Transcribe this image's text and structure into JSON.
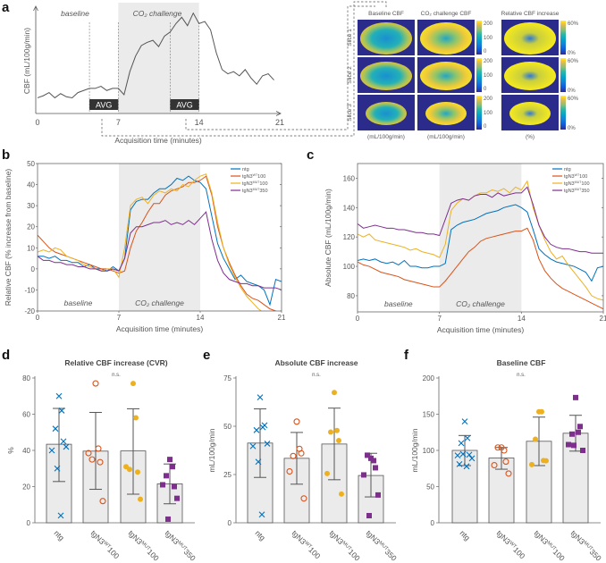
{
  "panel_labels": {
    "a": "a",
    "b": "b",
    "c": "c",
    "d": "d",
    "e": "e",
    "f": "f"
  },
  "colors": {
    "ntg": "#0072BD",
    "tgN3WT100": "#D95319",
    "tgN3MUT100": "#EDB120",
    "tgN3MUT350": "#7E2F8E",
    "shade": "#ebebeb",
    "bar": "#ebebeb",
    "avg_box": "#333333",
    "map_background": "#2b2b8c"
  },
  "brain_maps": {
    "col_titles": [
      "Baseline CBF",
      "CO₂ challenge CBF",
      "Relative CBF increase"
    ],
    "row_labels": [
      "Slice 1",
      "Slice 2",
      "Slice 3"
    ],
    "cbf_colorbar_ticks": [
      "200",
      "100",
      "0"
    ],
    "pct_colorbar_ticks": [
      "60%",
      "0%"
    ],
    "units": [
      "(mL/100g/min)",
      "(mL/100g/min)",
      "(%)"
    ],
    "colormap": "parula"
  },
  "chart_data": [
    {
      "panel": "a",
      "type": "line",
      "ylabel": "CBF (mL/100g/min)",
      "xlabel": "Acquisition time (minutes)",
      "xticks": [
        "0",
        "7",
        "14",
        "21"
      ],
      "xlim": [
        0,
        21
      ],
      "y_ticks_shown": false,
      "phase_labels": [
        "baseline",
        "CO₂ challenge"
      ],
      "shaded_interval": [
        7,
        14
      ],
      "avg_windows": [
        [
          4.5,
          7
        ],
        [
          11.5,
          14
        ]
      ],
      "avg_labels": [
        "AVG",
        "AVG"
      ],
      "x": [
        0,
        0.5,
        1,
        1.5,
        2,
        2.5,
        3,
        3.5,
        4,
        4.5,
        5,
        5.5,
        6,
        6.5,
        7,
        7.5,
        8,
        8.5,
        9,
        9.5,
        10,
        10.5,
        11,
        11.5,
        12,
        12.5,
        13,
        13.5,
        14,
        14.5,
        15,
        15.5,
        16,
        16.5,
        17,
        17.5,
        18,
        18.5,
        19,
        19.5,
        20,
        20.5
      ],
      "values": [
        15,
        17,
        20,
        15,
        19,
        16,
        15,
        20,
        22,
        24,
        24,
        26,
        22,
        24,
        24,
        18,
        40,
        55,
        65,
        68,
        70,
        64,
        74,
        78,
        86,
        92,
        84,
        96,
        86,
        88,
        80,
        58,
        42,
        38,
        40,
        36,
        42,
        34,
        28,
        36,
        38,
        32
      ]
    },
    {
      "panel": "b",
      "type": "line",
      "ylabel": "Relative CBF (% increase from baseline)",
      "xlabel": "Acquisition time (minutes)",
      "xlim": [
        0,
        21
      ],
      "ylim": [
        -20,
        50
      ],
      "xticks": [
        "0",
        "7",
        "14",
        "21"
      ],
      "yticks": [
        "50",
        "40",
        "30",
        "20",
        "10",
        "0",
        "-10",
        "-20"
      ],
      "phase_labels": [
        "baseline",
        "CO₂ challenge"
      ],
      "shaded_interval": [
        7,
        14
      ],
      "legend": "top-right",
      "x": [
        0,
        0.5,
        1,
        1.5,
        2,
        2.5,
        3,
        3.5,
        4,
        4.5,
        5,
        5.5,
        6,
        6.5,
        7,
        7.5,
        8,
        8.5,
        9,
        9.5,
        10,
        10.5,
        11,
        11.5,
        12,
        12.5,
        13,
        13.5,
        14,
        14.5,
        15,
        15.5,
        16,
        16.5,
        17,
        17.5,
        18,
        18.5,
        19,
        19.5,
        20,
        20.5,
        21
      ],
      "series": [
        {
          "name": {
            "base": "ntg",
            "sup": "",
            "suffix": ""
          },
          "color": "#0072BD",
          "values": [
            6,
            6,
            5,
            6,
            4,
            4,
            3,
            3,
            1,
            2,
            0,
            0,
            -1,
            1,
            -1,
            5,
            28,
            32,
            33,
            33,
            36,
            38,
            38,
            40,
            43,
            42,
            44,
            42,
            41,
            38,
            25,
            12,
            5,
            0,
            -5,
            -3,
            -6,
            -7,
            -8,
            -10,
            -17,
            -5,
            -6
          ]
        },
        {
          "name": {
            "base": "tgN3",
            "sup": "WT",
            "suffix": "100"
          },
          "color": "#D95319",
          "values": [
            16,
            13,
            10,
            8,
            7,
            6,
            5,
            4,
            3,
            2,
            1,
            0,
            0,
            -1,
            -2,
            -1,
            10,
            18,
            22,
            27,
            31,
            31,
            35,
            37,
            38,
            39,
            41,
            41,
            42,
            44,
            35,
            20,
            10,
            3,
            -3,
            -8,
            -12,
            -14,
            -15,
            -17,
            -19,
            -20,
            -22
          ]
        },
        {
          "name": {
            "base": "tgN3",
            "sup": "MUT",
            "suffix": "100"
          },
          "color": "#EDB120",
          "values": [
            8,
            9,
            8,
            10,
            9,
            6,
            5,
            4,
            2,
            1,
            0,
            -1,
            0,
            0,
            -4,
            10,
            30,
            33,
            34,
            31,
            35,
            37,
            36,
            38,
            37,
            40,
            39,
            42,
            44,
            45,
            36,
            22,
            10,
            2,
            -4,
            -9,
            -13,
            -16,
            -19,
            -21,
            -23,
            -24,
            -25
          ]
        },
        {
          "name": {
            "base": "tgN3",
            "sup": "MUT",
            "suffix": "350"
          },
          "color": "#7E2F8E",
          "values": [
            6,
            4,
            4,
            3,
            3,
            2,
            2,
            1,
            1,
            0,
            0,
            -1,
            -1,
            0,
            -1,
            5,
            17,
            20,
            20,
            21,
            22,
            22,
            23,
            21,
            22,
            21,
            23,
            21,
            24,
            27,
            14,
            4,
            -2,
            -5,
            -6,
            -7,
            -7,
            -8,
            -8,
            -9,
            -9,
            -9,
            -10
          ]
        }
      ]
    },
    {
      "panel": "c",
      "type": "line",
      "ylabel": "Absolute CBF (mL/100g/min)",
      "xlabel": "Acquisition time (minutes)",
      "xlim": [
        0,
        21
      ],
      "ylim": [
        69,
        170
      ],
      "xticks": [
        "0",
        "7",
        "14",
        "21"
      ],
      "yticks": [
        "160",
        "140",
        "120",
        "100",
        "80"
      ],
      "phase_labels": [
        "baseline",
        "CO₂ challenge"
      ],
      "shaded_interval": [
        7,
        14
      ],
      "legend": "top-right",
      "x": [
        0,
        0.5,
        1,
        1.5,
        2,
        2.5,
        3,
        3.5,
        4,
        4.5,
        5,
        5.5,
        6,
        6.5,
        7,
        7.5,
        8,
        8.5,
        9,
        9.5,
        10,
        10.5,
        11,
        11.5,
        12,
        12.5,
        13,
        13.5,
        14,
        14.5,
        15,
        15.5,
        16,
        16.5,
        17,
        17.5,
        18,
        18.5,
        19,
        19.5,
        20,
        20.5,
        21
      ],
      "series": [
        {
          "name": {
            "base": "ntg",
            "sup": "",
            "suffix": ""
          },
          "color": "#0072BD",
          "values": [
            104,
            105,
            104,
            105,
            103,
            102,
            103,
            101,
            104,
            100,
            100,
            99,
            99,
            100,
            100,
            102,
            125,
            128,
            130,
            131,
            132,
            134,
            136,
            137,
            138,
            140,
            141,
            142,
            140,
            137,
            125,
            112,
            108,
            105,
            103,
            102,
            101,
            100,
            98,
            96,
            90,
            99,
            100
          ]
        },
        {
          "name": {
            "base": "tgN3",
            "sup": "WT",
            "suffix": "100"
          },
          "color": "#D95319",
          "values": [
            103,
            101,
            100,
            98,
            96,
            95,
            94,
            93,
            91,
            90,
            89,
            88,
            87,
            86,
            86,
            90,
            95,
            100,
            105,
            110,
            113,
            117,
            119,
            120,
            121,
            122,
            123,
            124,
            124,
            126,
            118,
            105,
            97,
            92,
            88,
            85,
            83,
            81,
            79,
            77,
            75,
            73,
            71
          ]
        },
        {
          "name": {
            "base": "tgN3",
            "sup": "MUT",
            "suffix": "100"
          },
          "color": "#EDB120",
          "values": [
            122,
            120,
            122,
            118,
            117,
            116,
            115,
            114,
            113,
            111,
            112,
            110,
            109,
            108,
            106,
            115,
            138,
            143,
            146,
            145,
            148,
            150,
            150,
            152,
            151,
            153,
            150,
            154,
            152,
            158,
            140,
            128,
            118,
            110,
            105,
            107,
            101,
            96,
            91,
            86,
            80,
            78,
            77
          ]
        },
        {
          "name": {
            "base": "tgN3",
            "sup": "MUT",
            "suffix": "350"
          },
          "color": "#7E2F8E",
          "values": [
            129,
            126,
            127,
            128,
            127,
            126,
            126,
            125,
            125,
            124,
            123,
            123,
            122,
            122,
            121,
            132,
            143,
            145,
            146,
            145,
            148,
            149,
            149,
            147,
            150,
            148,
            149,
            150,
            150,
            154,
            142,
            128,
            120,
            115,
            113,
            112,
            112,
            111,
            110,
            110,
            109,
            109,
            109
          ]
        }
      ]
    },
    {
      "panel": "d",
      "type": "bar",
      "title": "Relative CBF increase (CVR)",
      "ylabel": "%",
      "annotation": "n.s.",
      "ylim": [
        0,
        80
      ],
      "yticks": [
        "0",
        "20",
        "40",
        "60",
        "80"
      ],
      "categories": [
        {
          "base": "ntg",
          "sup": "",
          "suffix": ""
        },
        {
          "base": "tgN3",
          "sup": "WT",
          "suffix": "100"
        },
        {
          "base": "tgN3",
          "sup": "MUT",
          "suffix": "100"
        },
        {
          "base": "tgN3",
          "sup": "MUT",
          "suffix": "350"
        }
      ],
      "means": [
        43.4,
        39.6,
        39.7,
        21.5
      ],
      "error_low": [
        22.8,
        18.5,
        15.8,
        10.5
      ],
      "error_high": [
        63.2,
        61,
        63,
        32.5
      ],
      "points": [
        [
          70,
          62,
          52,
          45,
          40,
          42,
          30,
          4
        ],
        [
          77,
          41,
          35,
          33.5,
          38.5,
          12
        ],
        [
          77,
          58,
          29.5,
          28,
          31,
          13
        ],
        [
          35,
          31,
          26,
          20,
          21,
          13.5,
          2
        ]
      ],
      "markers": [
        "x",
        "open-circle",
        "filled-circle",
        "filled-square"
      ]
    },
    {
      "panel": "e",
      "type": "bar",
      "title": "Absolute CBF increase",
      "ylabel": "mL/100g/min",
      "annotation": "n.s.",
      "ylim": [
        0,
        75
      ],
      "yticks": [
        "0",
        "25",
        "50",
        "75"
      ],
      "categories": [
        {
          "base": "ntg",
          "sup": "",
          "suffix": ""
        },
        {
          "base": "tgN3",
          "sup": "WT",
          "suffix": "100"
        },
        {
          "base": "tgN3",
          "sup": "MUT",
          "suffix": "100"
        },
        {
          "base": "tgN3",
          "sup": "MUT",
          "suffix": "350"
        }
      ],
      "means": [
        41.3,
        33.4,
        40.8,
        24.5
      ],
      "error_low": [
        23.5,
        20,
        22.3,
        13.4
      ],
      "error_high": [
        59,
        46.8,
        59.4,
        36
      ],
      "points": [
        [
          65,
          49.5,
          48,
          50.5,
          39.7,
          41,
          31.6,
          4.3
        ],
        [
          52.4,
          38.3,
          34.6,
          36,
          26.6,
          12.6
        ],
        [
          67.5,
          47.8,
          47,
          42.6,
          25.5,
          14.9
        ],
        [
          33.4,
          32.2,
          35,
          28.5,
          24.8,
          14.4,
          3.7
        ]
      ],
      "markers": [
        "x",
        "open-circle",
        "filled-circle",
        "filled-square"
      ]
    },
    {
      "panel": "f",
      "type": "bar",
      "title": "Baseline CBF",
      "ylabel": "mL/100g/min",
      "annotation": "n.s.",
      "ylim": [
        0,
        200
      ],
      "yticks": [
        "0",
        "50",
        "100",
        "150",
        "200"
      ],
      "categories": [
        {
          "base": "ntg",
          "sup": "",
          "suffix": ""
        },
        {
          "base": "tgN3",
          "sup": "WT",
          "suffix": "100"
        },
        {
          "base": "tgN3",
          "sup": "MUT",
          "suffix": "100"
        },
        {
          "base": "tgN3",
          "sup": "MUT",
          "suffix": "350"
        }
      ],
      "means": [
        100,
        89.5,
        112.6,
        123.7
      ],
      "error_low": [
        79,
        74,
        79,
        99
      ],
      "error_high": [
        120.6,
        104,
        146,
        148.5
      ],
      "points": [
        [
          140,
          117,
          110,
          94,
          93,
          89,
          95,
          78,
          81
        ],
        [
          104,
          100,
          104,
          84.5,
          79.6,
          68
        ],
        [
          153.4,
          153.4,
          115.5,
          86,
          80.4,
          85.6
        ],
        [
          173,
          125,
          122.5,
          133,
          108,
          100,
          107
        ]
      ],
      "markers": [
        "x",
        "open-circle",
        "filled-circle",
        "filled-square"
      ]
    }
  ]
}
